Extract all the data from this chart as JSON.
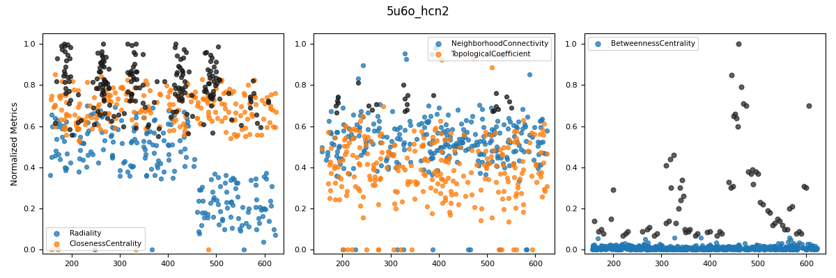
{
  "title": "5u6o_hcn2",
  "ylabel": "Normalized Metrics",
  "xlim": [
    140,
    640
  ],
  "ylim": [
    -0.02,
    1.05
  ],
  "subplot1": {
    "legend": [
      "Radiality",
      "ClosenessCentrality"
    ],
    "colors": [
      "#1f77b4",
      "#ff7f0e",
      "#1a1a1a"
    ]
  },
  "subplot2": {
    "legend": [
      "NeighborhoodConnectivity",
      "TopologicalCoefficient"
    ],
    "colors": [
      "#1f77b4",
      "#ff7f0e",
      "#1a1a1a"
    ]
  },
  "subplot3": {
    "legend": [
      "BetweennessCentrality"
    ],
    "colors": [
      "#1f77b4",
      "#2a2a2a"
    ]
  },
  "marker_size": 18,
  "alpha": 0.75,
  "seed": 7
}
